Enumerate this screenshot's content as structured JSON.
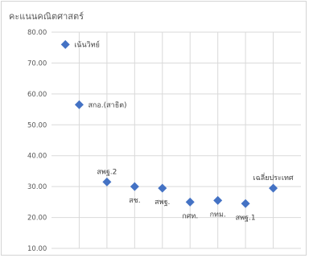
{
  "chart_data": {
    "type": "scatter",
    "title": "คะแนนคณิตศาสตร์",
    "xlabel": "",
    "ylabel": "",
    "ylim": [
      10,
      80
    ],
    "ytick_step": 10,
    "yticks": [
      "10.00",
      "20.00",
      "30.00",
      "40.00",
      "50.00",
      "60.00",
      "70.00",
      "80.00"
    ],
    "xlim": [
      0,
      9
    ],
    "xgrid": [
      1,
      2,
      3,
      4,
      5,
      6,
      7,
      8
    ],
    "grid": true,
    "legend": "none",
    "marker": "diamond",
    "color": "#4472c4",
    "points": [
      {
        "x": 0.5,
        "y": 76.0,
        "label": "เน้นวิทย์",
        "label_pos": "right"
      },
      {
        "x": 1.0,
        "y": 56.5,
        "label": "สกอ.(สาธิต)",
        "label_pos": "right"
      },
      {
        "x": 2.0,
        "y": 31.5,
        "label": "สพฐ.2",
        "label_pos": "above"
      },
      {
        "x": 3.0,
        "y": 30.0,
        "label": "สช.",
        "label_pos": "below"
      },
      {
        "x": 4.0,
        "y": 29.5,
        "label": "สพฐ.",
        "label_pos": "below"
      },
      {
        "x": 5.0,
        "y": 25.0,
        "label": "กศท.",
        "label_pos": "below"
      },
      {
        "x": 6.0,
        "y": 25.5,
        "label": "กทม.",
        "label_pos": "below"
      },
      {
        "x": 7.0,
        "y": 24.5,
        "label": "สพฐ.1",
        "label_pos": "below"
      },
      {
        "x": 8.0,
        "y": 29.5,
        "label": "เฉลี่ยประเทศ",
        "label_pos": "above"
      }
    ]
  }
}
